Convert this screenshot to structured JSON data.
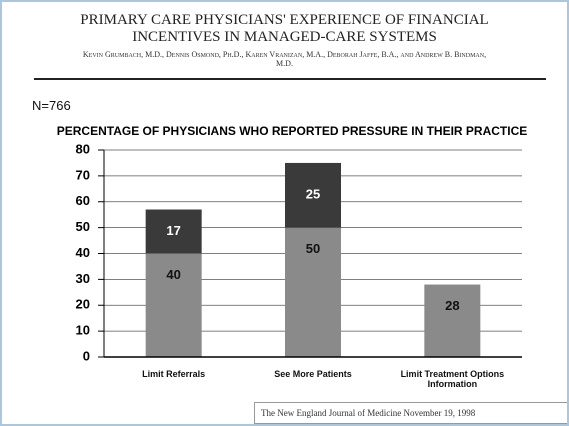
{
  "header": {
    "title": "PRIMARY CARE PHYSICIANS' EXPERIENCE OF FINANCIAL INCENTIVES IN MANAGED-CARE SYSTEMS",
    "authors": "Kevin Grumbach, M.D., Dennis Osmond, Ph.D., Karen Vranizan, M.A., Deborah Jaffe, B.A., and Andrew B. Bindman, M.D."
  },
  "note": "N=766",
  "chart_data": {
    "type": "stacked_bar",
    "title": "PERCENTAGE OF PHYSICIANS WHO REPORTED PRESSURE IN THEIR PRACTICE",
    "categories": [
      "Limit Referrals",
      "See More Patients",
      "Limit Treatment Options Information"
    ],
    "series": [
      {
        "color": "#8a8a8a",
        "values": [
          40,
          50,
          28
        ]
      },
      {
        "color": "#3a3a3a",
        "values": [
          17,
          25,
          null
        ]
      }
    ],
    "ylim": [
      0,
      80
    ],
    "yticks": [
      0,
      10,
      20,
      30,
      40,
      50,
      60,
      70,
      80
    ],
    "grid": true
  },
  "footer": "The New England Journal of Medicine November 19, 1998"
}
